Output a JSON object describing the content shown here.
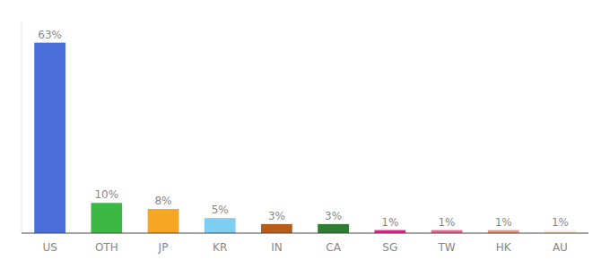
{
  "chart_data": {
    "type": "bar",
    "categories": [
      "US",
      "OTH",
      "JP",
      "KR",
      "IN",
      "CA",
      "SG",
      "TW",
      "HK",
      "AU"
    ],
    "values": [
      63,
      10,
      8,
      5,
      3,
      3,
      1,
      1,
      1,
      1
    ],
    "value_labels": [
      "63%",
      "10%",
      "8%",
      "5%",
      "3%",
      "3%",
      "1%",
      "1%",
      "1%",
      "1%"
    ],
    "colors": [
      "#4A6FDB",
      "#3CB844",
      "#F5A623",
      "#7ECEF4",
      "#B85C1A",
      "#2E7D32",
      "#E91E8C",
      "#F06292",
      "#E8967A",
      "#F5F0D8"
    ],
    "ylim": [
      0,
      70
    ],
    "data_labels": true,
    "tick_labels": "x"
  }
}
